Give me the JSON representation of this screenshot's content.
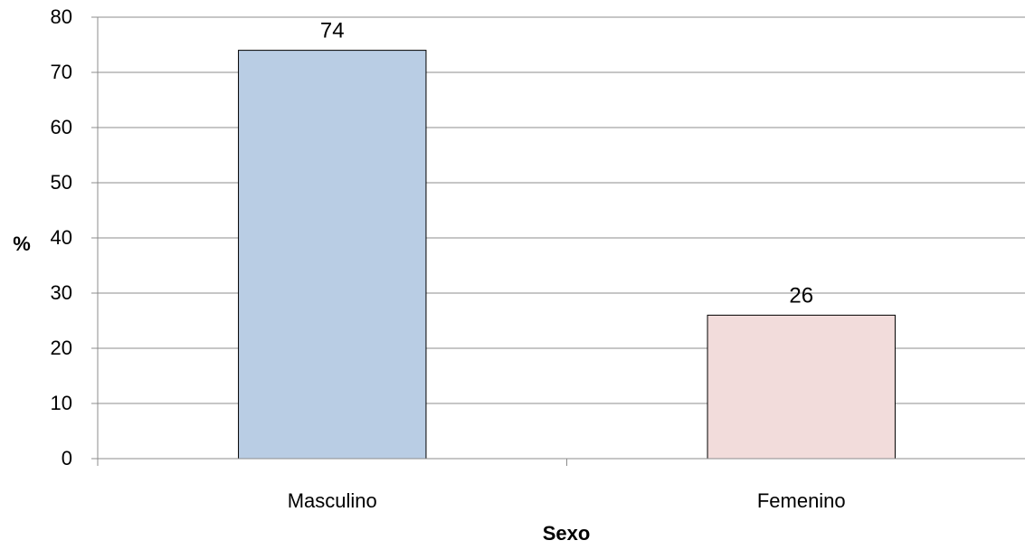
{
  "chart_data": {
    "type": "bar",
    "categories": [
      "Masculino",
      "Femenino"
    ],
    "values": [
      74,
      26
    ],
    "data_labels": [
      "74",
      "26"
    ],
    "colors": [
      "#b9cde4",
      "#f2dcdb"
    ],
    "xlabel": "Sexo",
    "ylabel": "%",
    "ylim": [
      0,
      80
    ],
    "yticks": [
      "0",
      "10",
      "20",
      "30",
      "40",
      "50",
      "60",
      "70",
      "80"
    ],
    "grid": true,
    "legend": "none"
  }
}
